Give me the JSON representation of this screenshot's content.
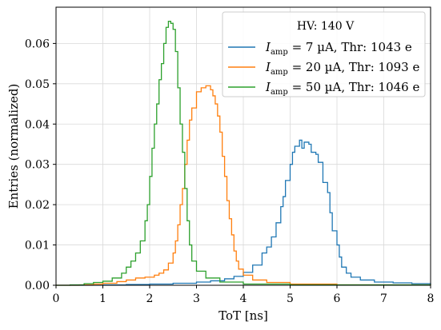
{
  "chart_data": {
    "type": "line",
    "xlabel": "ToT [ns]",
    "ylabel": "Entries (normalized)",
    "xlim": [
      0,
      8
    ],
    "ylim": [
      0,
      0.069
    ],
    "x_ticks": [
      "0",
      "1",
      "2",
      "3",
      "4",
      "5",
      "6",
      "7",
      "8"
    ],
    "y_ticks": [
      "0.00",
      "0.01",
      "0.02",
      "0.03",
      "0.04",
      "0.05",
      "0.06"
    ],
    "grid": true,
    "legend": {
      "placement": "top-right",
      "title": "HV: 140 V"
    },
    "series": [
      {
        "name": "I_amp = 7 µA, Thr: 1043 e",
        "label_parts": {
          "var": "I",
          "sub": "amp",
          "rest": " = 7 µA, Thr: 1043 e"
        },
        "color": "#1f77b4",
        "points": [
          [
            0.0,
            0.0
          ],
          [
            0.5,
            0.0
          ],
          [
            1.0,
            0.0001
          ],
          [
            1.5,
            0.0002
          ],
          [
            2.0,
            0.0003
          ],
          [
            2.5,
            0.0005
          ],
          [
            3.0,
            0.0008
          ],
          [
            3.3,
            0.0011
          ],
          [
            3.6,
            0.0016
          ],
          [
            3.8,
            0.0022
          ],
          [
            4.0,
            0.0032
          ],
          [
            4.2,
            0.005
          ],
          [
            4.4,
            0.008
          ],
          [
            4.5,
            0.0095
          ],
          [
            4.6,
            0.012
          ],
          [
            4.7,
            0.0155
          ],
          [
            4.8,
            0.0195
          ],
          [
            4.85,
            0.022
          ],
          [
            4.9,
            0.026
          ],
          [
            5.0,
            0.03
          ],
          [
            5.05,
            0.033
          ],
          [
            5.1,
            0.0345
          ],
          [
            5.2,
            0.036
          ],
          [
            5.25,
            0.034
          ],
          [
            5.3,
            0.0355
          ],
          [
            5.4,
            0.035
          ],
          [
            5.45,
            0.033
          ],
          [
            5.55,
            0.0325
          ],
          [
            5.6,
            0.0305
          ],
          [
            5.7,
            0.0255
          ],
          [
            5.8,
            0.023
          ],
          [
            5.85,
            0.018
          ],
          [
            5.9,
            0.0135
          ],
          [
            6.0,
            0.01
          ],
          [
            6.05,
            0.007
          ],
          [
            6.1,
            0.0045
          ],
          [
            6.2,
            0.003
          ],
          [
            6.3,
            0.002
          ],
          [
            6.5,
            0.0013
          ],
          [
            6.8,
            0.0008
          ],
          [
            7.2,
            0.0006
          ],
          [
            7.6,
            0.0004
          ],
          [
            8.0,
            0.0003
          ]
        ]
      },
      {
        "name": "I_amp = 20 µA, Thr: 1093 e",
        "label_parts": {
          "var": "I",
          "sub": "amp",
          "rest": " = 20 µA, Thr: 1093 e"
        },
        "color": "#ff7f0e",
        "points": [
          [
            0.0,
            0.0
          ],
          [
            0.5,
            0.0001
          ],
          [
            0.8,
            0.0003
          ],
          [
            1.0,
            0.0005
          ],
          [
            1.3,
            0.0009
          ],
          [
            1.5,
            0.0013
          ],
          [
            1.7,
            0.0018
          ],
          [
            1.9,
            0.002
          ],
          [
            2.1,
            0.0025
          ],
          [
            2.2,
            0.003
          ],
          [
            2.3,
            0.0038
          ],
          [
            2.4,
            0.0055
          ],
          [
            2.5,
            0.008
          ],
          [
            2.55,
            0.011
          ],
          [
            2.6,
            0.015
          ],
          [
            2.65,
            0.02
          ],
          [
            2.7,
            0.024
          ],
          [
            2.75,
            0.03
          ],
          [
            2.8,
            0.036
          ],
          [
            2.85,
            0.041
          ],
          [
            2.9,
            0.044
          ],
          [
            3.0,
            0.048
          ],
          [
            3.1,
            0.049
          ],
          [
            3.2,
            0.0495
          ],
          [
            3.3,
            0.0485
          ],
          [
            3.35,
            0.047
          ],
          [
            3.4,
            0.045
          ],
          [
            3.45,
            0.042
          ],
          [
            3.5,
            0.038
          ],
          [
            3.55,
            0.032
          ],
          [
            3.6,
            0.027
          ],
          [
            3.65,
            0.021
          ],
          [
            3.7,
            0.0165
          ],
          [
            3.75,
            0.0125
          ],
          [
            3.8,
            0.0085
          ],
          [
            3.85,
            0.006
          ],
          [
            3.9,
            0.004
          ],
          [
            4.0,
            0.0025
          ],
          [
            4.2,
            0.0013
          ],
          [
            4.5,
            0.0007
          ],
          [
            5.0,
            0.0003
          ],
          [
            6.0,
            0.0001
          ],
          [
            8.0,
            0.0
          ]
        ]
      },
      {
        "name": "I_amp = 50 µA, Thr: 1046 e",
        "label_parts": {
          "var": "I",
          "sub": "amp",
          "rest": " = 50 µA, Thr: 1046 e"
        },
        "color": "#2ca02c",
        "points": [
          [
            0.0,
            0.0
          ],
          [
            0.3,
            0.0001
          ],
          [
            0.6,
            0.0004
          ],
          [
            0.8,
            0.0007
          ],
          [
            1.0,
            0.001
          ],
          [
            1.2,
            0.0018
          ],
          [
            1.4,
            0.003
          ],
          [
            1.5,
            0.0045
          ],
          [
            1.6,
            0.006
          ],
          [
            1.7,
            0.008
          ],
          [
            1.8,
            0.011
          ],
          [
            1.9,
            0.016
          ],
          [
            1.95,
            0.02
          ],
          [
            2.0,
            0.027
          ],
          [
            2.05,
            0.034
          ],
          [
            2.1,
            0.04
          ],
          [
            2.15,
            0.045
          ],
          [
            2.2,
            0.051
          ],
          [
            2.25,
            0.055
          ],
          [
            2.3,
            0.06
          ],
          [
            2.35,
            0.064
          ],
          [
            2.4,
            0.0655
          ],
          [
            2.45,
            0.065
          ],
          [
            2.5,
            0.0635
          ],
          [
            2.55,
            0.058
          ],
          [
            2.6,
            0.049
          ],
          [
            2.65,
            0.04
          ],
          [
            2.7,
            0.033
          ],
          [
            2.75,
            0.024
          ],
          [
            2.8,
            0.016
          ],
          [
            2.85,
            0.01
          ],
          [
            2.9,
            0.006
          ],
          [
            3.0,
            0.0035
          ],
          [
            3.2,
            0.0018
          ],
          [
            3.5,
            0.0008
          ],
          [
            4.0,
            0.0003
          ],
          [
            5.0,
            0.0001
          ],
          [
            8.0,
            0.0
          ]
        ]
      }
    ]
  }
}
